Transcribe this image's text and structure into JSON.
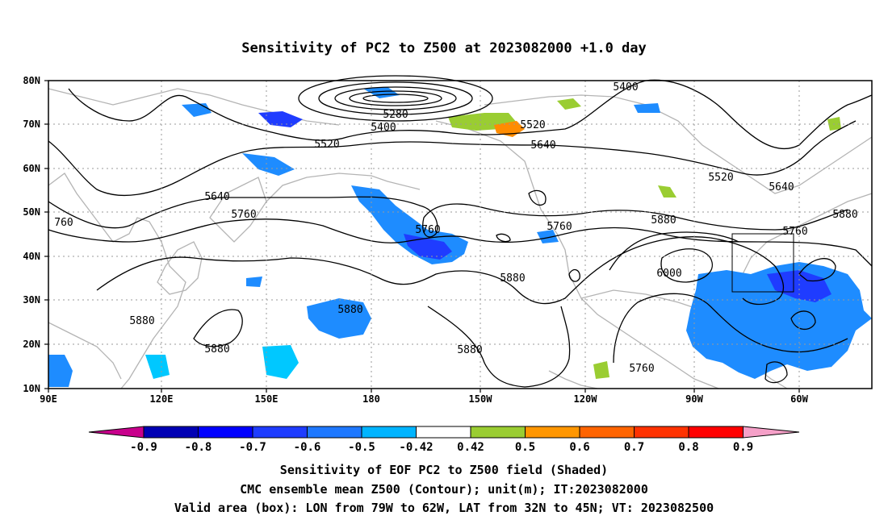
{
  "title": "Sensitivity of PC2 to Z500 at 2023082000 +1.0 day",
  "map": {
    "lat_labels": [
      "80N",
      "70N",
      "60N",
      "50N",
      "40N",
      "30N",
      "20N",
      "10N"
    ],
    "lon_labels": [
      "90E",
      "120E",
      "150E",
      "180",
      "150W",
      "120W",
      "90W",
      "60W"
    ],
    "contour_labels": [
      "5400",
      "5280",
      "5400",
      "5520",
      "5640",
      "5520",
      "5640",
      "5760",
      "760",
      "5640",
      "5760",
      "5760",
      "5880",
      "5880",
      "6000",
      "5880",
      "5880",
      "5880",
      "5880",
      "5760",
      "5880",
      "5520"
    ],
    "colors": {
      "land": "#b4b4b4",
      "contour": "#000000",
      "grid": "#9a9a9a",
      "neg_strong": "#1f3cff",
      "neg_mid": "#1e8cff",
      "neg_weak": "#00c8ff",
      "pos_weak": "#9acd32",
      "pos_mid": "#ff8c00",
      "pos_strong": "#ff3c00"
    },
    "box": {
      "lon_from": "79W",
      "lon_to": "62W",
      "lat_from": "32N",
      "lat_to": "45N"
    }
  },
  "colorbar": {
    "labels": [
      "-0.9",
      "-0.8",
      "-0.7",
      "-0.6",
      "-0.5",
      "-0.42",
      "0.42",
      "0.5",
      "0.6",
      "0.7",
      "0.8",
      "0.9"
    ],
    "colors": [
      "#c8008c",
      "#0000b4",
      "#0000ff",
      "#1e3cff",
      "#1e78ff",
      "#00b4ff",
      "#ffffff",
      "#9acd32",
      "#ff9600",
      "#ff6400",
      "#ff3200",
      "#ff0000",
      "#f5a0c8"
    ]
  },
  "captions": {
    "line1": "Sensitivity of EOF PC2 to Z500 field (Shaded)",
    "line2": "CMC ensemble mean Z500 (Contour); unit(m); IT:2023082000",
    "line3": "Valid area (box): LON from 79W to 62W, LAT from 32N to 45N; VT: 2023082500"
  }
}
